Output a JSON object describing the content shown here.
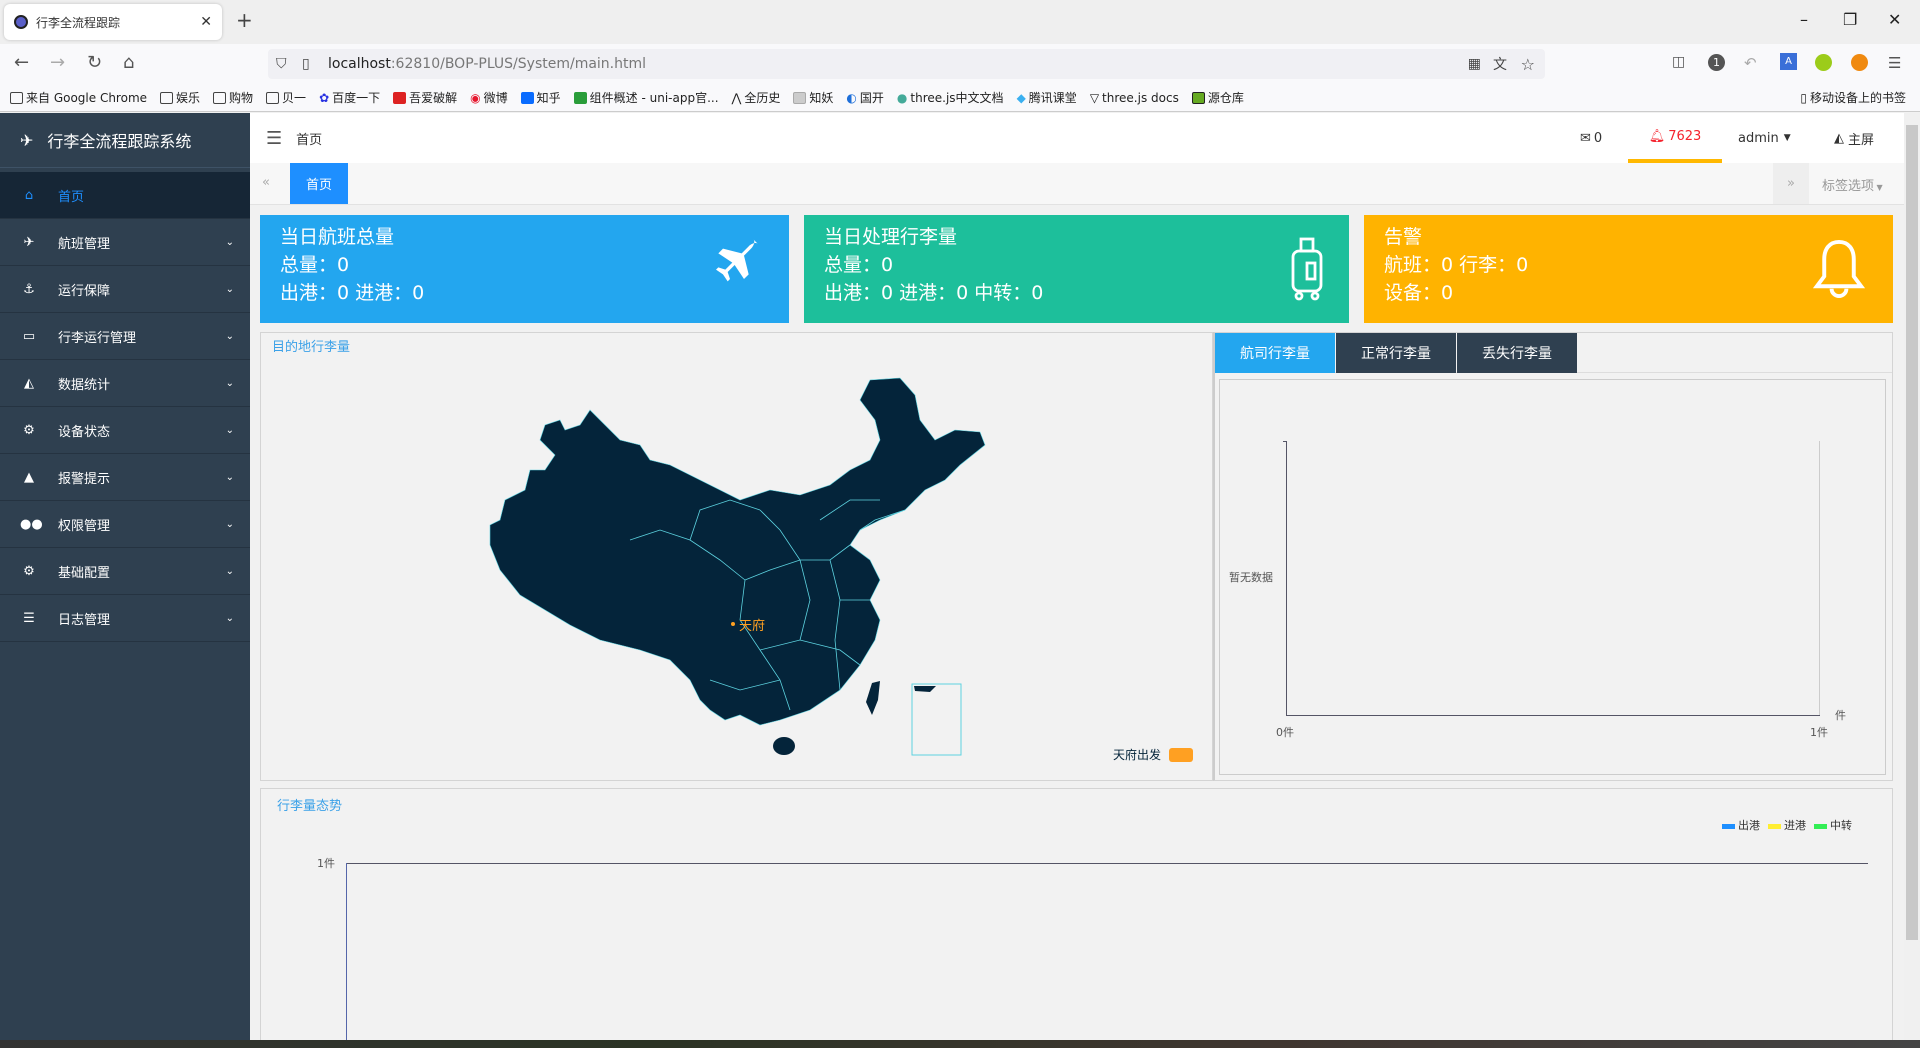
{
  "browser": {
    "tab_title": "行李全流程跟踪",
    "url_host": "localhost",
    "url_rest": ":62810/BOP-PLUS/System/main.html",
    "bookmarks": [
      "来自 Google Chrome",
      "娱乐",
      "购物",
      "贝一",
      "百度一下",
      "吾爱破解",
      "微博",
      "知乎",
      "组件概述 - uni-app官...",
      "全历史",
      "知妖",
      "国开",
      "three.js中文文档",
      "腾讯课堂",
      "three.js docs",
      "源仓库"
    ],
    "mobile_bookmarks": "移动设备上的书签"
  },
  "sidebar": {
    "brand": "行李全流程跟踪系统",
    "items": [
      {
        "label": "首页",
        "icon": "home-icon",
        "glyph": "⌂"
      },
      {
        "label": "航班管理",
        "icon": "plane-icon",
        "glyph": "✈"
      },
      {
        "label": "运行保障",
        "icon": "anchor-icon",
        "glyph": "⚓"
      },
      {
        "label": "行李运行管理",
        "icon": "credit-card-icon",
        "glyph": "▭"
      },
      {
        "label": "数据统计",
        "icon": "area-chart-icon",
        "glyph": "◭"
      },
      {
        "label": "设备状态",
        "icon": "cogs-icon",
        "glyph": "⚙"
      },
      {
        "label": "报警提示",
        "icon": "bell-icon",
        "glyph": "🔔"
      },
      {
        "label": "权限管理",
        "icon": "users-icon",
        "glyph": "👥"
      },
      {
        "label": "基础配置",
        "icon": "gear-icon",
        "glyph": "⚙"
      },
      {
        "label": "日志管理",
        "icon": "list-icon",
        "glyph": "☰"
      }
    ]
  },
  "topnav": {
    "breadcrumb": "首页",
    "mail_count": "0",
    "alert_count": "7623",
    "user": "admin",
    "home_screen": "主屏",
    "alert_color": "#f5222d",
    "accent": "#ffb800"
  },
  "tags": {
    "active": "首页",
    "options": "标签选项"
  },
  "cards": [
    {
      "title": "当日航班总量",
      "line1": "总量：0",
      "line2": "出港：0 进港：0",
      "color": "#23a6ef",
      "icon": "plane-icon"
    },
    {
      "title": "当日处理行李量",
      "line1": "总量：0",
      "line2": "出港：0 进港：0 中转：0",
      "color": "#1dbf9b",
      "icon": "suitcase-icon"
    },
    {
      "title": "告警",
      "line1": "航班：0 行李：0",
      "line2": "设备：0",
      "color": "#ffb300",
      "icon": "bell-icon"
    }
  ],
  "map": {
    "title": "目的地行李量",
    "city": "天府",
    "legend": "天府出发",
    "legend_color": "#ffa022",
    "land_color": "#04243a",
    "border_color": "#5dd3e0"
  },
  "right": {
    "tabs": [
      "航司行李量",
      "正常行李量",
      "丢失行李量"
    ],
    "active_tab": 0,
    "empty": "暂无数据",
    "x_ticks": [
      "0件",
      "1件"
    ],
    "x_unit": "件"
  },
  "trend": {
    "title": "行李量态势",
    "legend": [
      {
        "name": "出港",
        "color": "#1e8fff"
      },
      {
        "name": "进港",
        "color": "#ffee33"
      },
      {
        "name": "中转",
        "color": "#33ee55"
      }
    ],
    "y_tick": "1件"
  }
}
